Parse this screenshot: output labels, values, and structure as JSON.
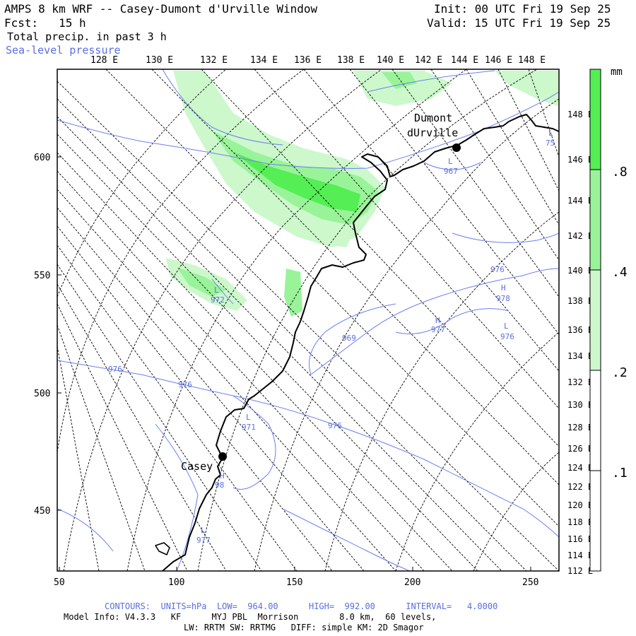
{
  "header": {
    "title": "AMPS 8 km WRF -- Casey-Dumont d'Urville Window",
    "fcst_label": "Fcst:",
    "fcst_value": "15 h",
    "product": "Total precip. in past 3 h",
    "overlay": "Sea-level pressure",
    "init": "Init: 00 UTC Fri 19 Sep 25",
    "valid": "Valid: 15 UTC Fri 19 Sep 25"
  },
  "map": {
    "top_lon_labels": [
      "128 E",
      "130 E",
      "132 E",
      "134 E",
      "136 E",
      "138 E",
      "140 E",
      "142 E",
      "144 E",
      "146 E",
      "148 E"
    ],
    "right_lon_labels": [
      "148 E",
      "146 E",
      "144 E",
      "142 E",
      "140 E",
      "138 E",
      "136 E",
      "134 E",
      "132 E",
      "130 E",
      "128 E",
      "126 E",
      "124 E",
      "122 E",
      "120 E",
      "118 E",
      "116 E",
      "114 E",
      "112 E"
    ],
    "x_ticks": [
      "50",
      "100",
      "150",
      "200",
      "250"
    ],
    "y_ticks": [
      "600",
      "550",
      "500",
      "450"
    ],
    "stations": [
      {
        "name": "Casey",
        "lines": [
          "Casey"
        ]
      },
      {
        "name": "Dumont d'Urville",
        "lines": [
          "Dumont",
          "dUrville"
        ]
      }
    ],
    "pressure_labels": [
      "972",
      "976",
      "976",
      "971",
      "976",
      "969",
      "977",
      "976",
      "978",
      "976",
      "967",
      "977",
      "98",
      "75"
    ],
    "hl_labels": [
      "L",
      "L",
      "L",
      "L",
      "H",
      "H",
      "H",
      "L",
      "L"
    ]
  },
  "legend": {
    "unit": "mm",
    "levels": [
      ".8",
      ".4",
      ".2",
      ".1"
    ],
    "colors": [
      "#55ee55",
      "#99f399",
      "#ccf8cc",
      "#ffffff"
    ],
    "thresholds_mm": [
      0.1,
      0.2,
      0.4,
      0.8
    ]
  },
  "footer": {
    "contours": "CONTOURS:  UNITS=hPa  LOW=  964.00      HIGH=  992.00      INTERVAL=   4.0000",
    "model": "Model Info: V4.3.3   KF      MYJ PBL  Morrison        8.0 km,  60 levels,",
    "physics": "LW: RRTM SW: RRTMG   DIFF: simple KM: 2D Smagor"
  }
}
